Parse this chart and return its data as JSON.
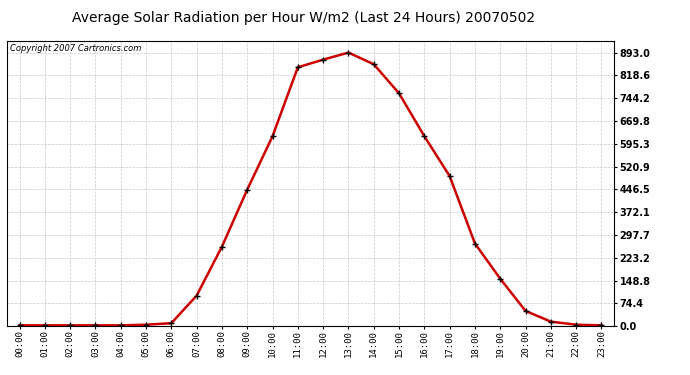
{
  "title": "Average Solar Radiation per Hour W/m2 (Last 24 Hours) 20070502",
  "copyright_text": "Copyright 2007 Cartronics.com",
  "hours": [
    "00:00",
    "01:00",
    "02:00",
    "03:00",
    "04:00",
    "05:00",
    "06:00",
    "07:00",
    "08:00",
    "09:00",
    "10:00",
    "11:00",
    "12:00",
    "13:00",
    "14:00",
    "15:00",
    "16:00",
    "17:00",
    "18:00",
    "19:00",
    "20:00",
    "21:00",
    "22:00",
    "23:00"
  ],
  "values": [
    3,
    3,
    3,
    3,
    3,
    5,
    10,
    100,
    260,
    446,
    620,
    845,
    870,
    893,
    855,
    760,
    620,
    490,
    270,
    155,
    50,
    15,
    5,
    3
  ],
  "line_color": "#cc0000",
  "marker_color": "#000000",
  "bg_color": "#ffffff",
  "plot_bg_color": "#ffffff",
  "grid_color": "#c8c8c8",
  "yticks": [
    0.0,
    74.4,
    148.8,
    223.2,
    297.7,
    372.1,
    446.5,
    520.9,
    595.3,
    669.8,
    744.2,
    818.6,
    893.0
  ],
  "ymax": 930,
  "title_fontsize": 10,
  "copyright_fontsize": 6,
  "xtick_fontsize": 6.5,
  "ytick_fontsize": 7
}
